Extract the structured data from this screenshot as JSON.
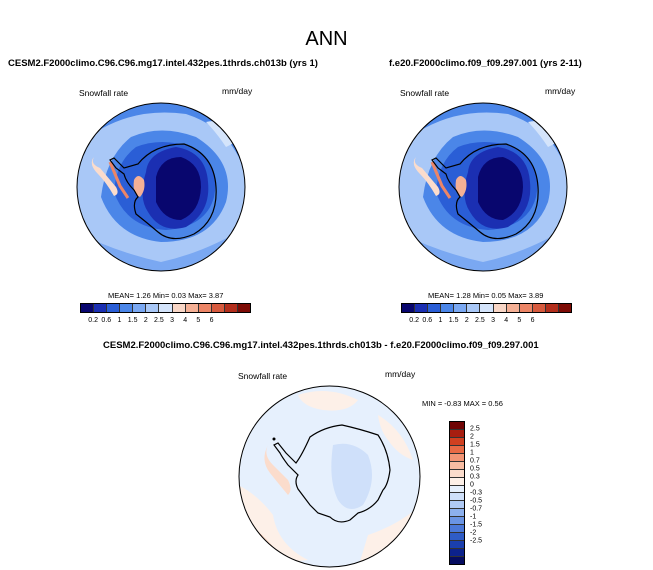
{
  "main_title": "ANN",
  "panel1": {
    "title": "CESM2.F2000climo.C96.C96.mg17.intel.432pes.1thrds.ch013b (yrs 1)",
    "variable": "Snowfall rate",
    "units": "mm/day",
    "mean_label": "MEAN=",
    "mean": "1.26",
    "min_label": "Min=",
    "min": "0.03",
    "max_label": "Max=",
    "max": "3.87"
  },
  "panel2": {
    "title": "f.e20.F2000climo.f09_f09.297.001 (yrs 2-11)",
    "variable": "Snowfall rate",
    "units": "mm/day",
    "mean_label": "MEAN=",
    "mean": "1.28",
    "min_label": "Min=",
    "min": "0.05",
    "max_label": "Max=",
    "max": "3.89"
  },
  "panel3": {
    "title": "CESM2.F2000climo.C96.C96.mg17.intel.432pes.1thrds.ch013b - f.e20.F2000climo.f09_f09.297.001",
    "variable": "Snowfall rate",
    "units": "mm/day",
    "range_text": "MIN = -0.83 MAX = 0.56"
  },
  "colorbar_abs": {
    "colors": [
      "#08066e",
      "#1b2fb2",
      "#2a5ed6",
      "#4b86e8",
      "#7aa8f2",
      "#a9c8f7",
      "#d4e4fb",
      "#f8d6c6",
      "#f5b095",
      "#ec8566",
      "#d65a3e",
      "#b32e1c",
      "#7d0b05"
    ],
    "ticks": [
      "0.2",
      "0.6",
      "1",
      "1.5",
      "2",
      "2.5",
      "3",
      "4",
      "5",
      "6"
    ]
  },
  "colorbar_diff": {
    "colors": [
      "#700505",
      "#a71e10",
      "#d04020",
      "#e86a45",
      "#f29575",
      "#f7bca2",
      "#fbdccc",
      "#fdf0e8",
      "#e6f0fd",
      "#cfe0fa",
      "#b0caf5",
      "#8cb0ee",
      "#6a94e4",
      "#4b78d8",
      "#2f5cc6",
      "#1b3fae",
      "#0c228c",
      "#050c60"
    ],
    "ticks": [
      "2.5",
      "2",
      "1.5",
      "1",
      "0.7",
      "0.5",
      "0.3",
      "0",
      "-0.3",
      "-0.5",
      "-0.7",
      "-1",
      "-1.5",
      "-2",
      "-2.5"
    ]
  }
}
